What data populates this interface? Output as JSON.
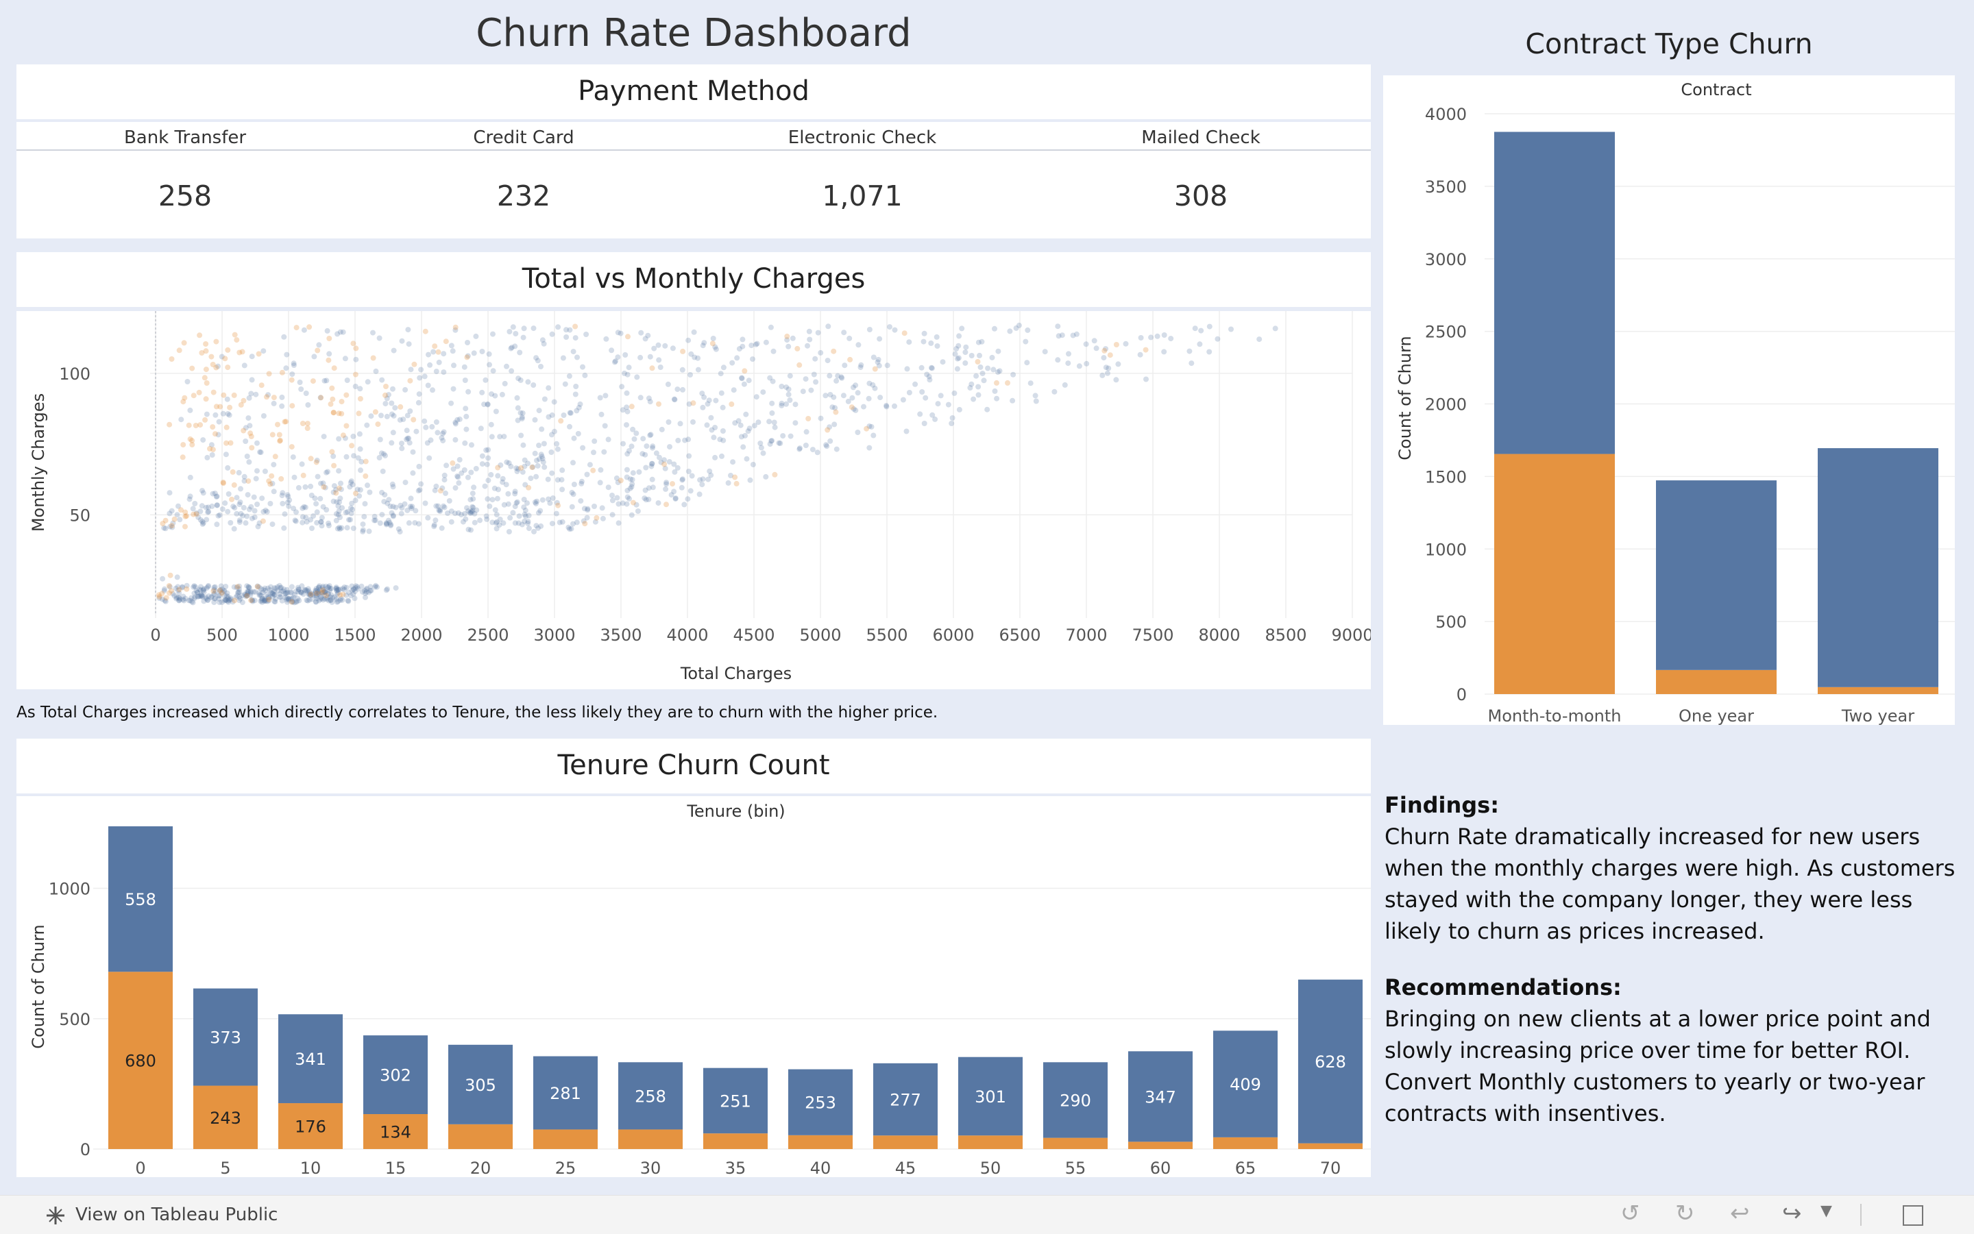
{
  "dashboard": {
    "title": "Churn Rate Dashboard",
    "payment_title": "Payment Method",
    "payment_cards": [
      {
        "label": "Bank Transfer",
        "value": "258"
      },
      {
        "label": "Credit Card",
        "value": "232"
      },
      {
        "label": "Electronic Check",
        "value": "1,071"
      },
      {
        "label": "Mailed Check",
        "value": "308"
      }
    ],
    "scatter_title": "Total vs Monthly Charges",
    "scatter_note": "As Total Charges increased which directly correlates to Tenure, the less likely they are to churn with the higher price.",
    "tenure_title": "Tenure Churn Count",
    "contract_title": "Contract Type Churn",
    "findings_heading": "Findings:",
    "findings_text": "Churn Rate dramatically increased for new users when the monthly charges were high. As customers stayed with the company longer, they were less likely to churn as prices increased.",
    "recommendations_heading": "Recommendations:",
    "recommendations_text": "Bringing on new clients at a lower price point and slowly increasing price over time for better ROI. Convert Monthly customers to yearly or two-year contracts with insentives."
  },
  "colors": {
    "background": "#e6ebf6",
    "not_churned": "#5777a3",
    "churned": "#e59340"
  },
  "footer": {
    "tableau_label": "View on Tableau Public",
    "icons": [
      "tableau-logo-icon",
      "undo-icon",
      "redo-icon",
      "revert-icon",
      "share-icon",
      "dropdown-icon",
      "fullscreen-icon"
    ]
  },
  "chart_data": [
    {
      "type": "scatter",
      "title": "Total vs Monthly Charges",
      "xlabel": "Total Charges",
      "ylabel": "Monthly Charges",
      "xlim": [
        0,
        9000
      ],
      "ylim": [
        15,
        122
      ],
      "x_ticks": [
        0,
        500,
        1000,
        1500,
        2000,
        2500,
        3000,
        3500,
        4000,
        4500,
        5000,
        5500,
        6000,
        6500,
        7000,
        7500,
        8000,
        8500,
        9000
      ],
      "y_ticks": [
        50,
        100
      ],
      "grid": true,
      "series": [
        {
          "color": "#5777a3"
        },
        {
          "color": "#e59340"
        }
      ]
    },
    {
      "type": "bar",
      "stacked": true,
      "title": "Contract",
      "ylabel": "Count of Churn",
      "categories": [
        "Month-to-month",
        "One year",
        "Two year"
      ],
      "ylim": [
        0,
        4000
      ],
      "y_ticks": [
        0,
        500,
        1000,
        1500,
        2000,
        2500,
        3000,
        3500,
        4000
      ],
      "series": [
        {
          "color": "#e59340",
          "values": [
            1655,
            166,
            48
          ]
        },
        {
          "color": "#5777a3",
          "values": [
            2220,
            1307,
            1647
          ]
        }
      ]
    },
    {
      "type": "bar",
      "stacked": true,
      "title": "Tenure (bin)",
      "ylabel": "Count of Churn",
      "categories": [
        "0",
        "5",
        "10",
        "15",
        "20",
        "25",
        "30",
        "35",
        "40",
        "45",
        "50",
        "55",
        "60",
        "65",
        "70"
      ],
      "ylim": [
        0,
        1280
      ],
      "y_ticks": [
        0,
        500,
        1000
      ],
      "series": [
        {
          "color": "#e59340",
          "values": [
            680,
            243,
            176,
            134,
            95,
            75,
            75,
            60,
            53,
            52,
            52,
            43,
            28,
            45,
            22
          ],
          "labels": [
            "680",
            "243",
            "176",
            "134",
            "",
            "",
            "",
            "",
            "",
            "",
            "",
            "",
            "",
            "",
            ""
          ]
        },
        {
          "color": "#5777a3",
          "values": [
            558,
            373,
            341,
            302,
            305,
            281,
            258,
            251,
            253,
            277,
            301,
            290,
            347,
            409,
            628
          ],
          "labels": [
            "558",
            "373",
            "341",
            "302",
            "305",
            "281",
            "258",
            "251",
            "253",
            "277",
            "301",
            "290",
            "347",
            "409",
            "628"
          ]
        }
      ]
    }
  ]
}
